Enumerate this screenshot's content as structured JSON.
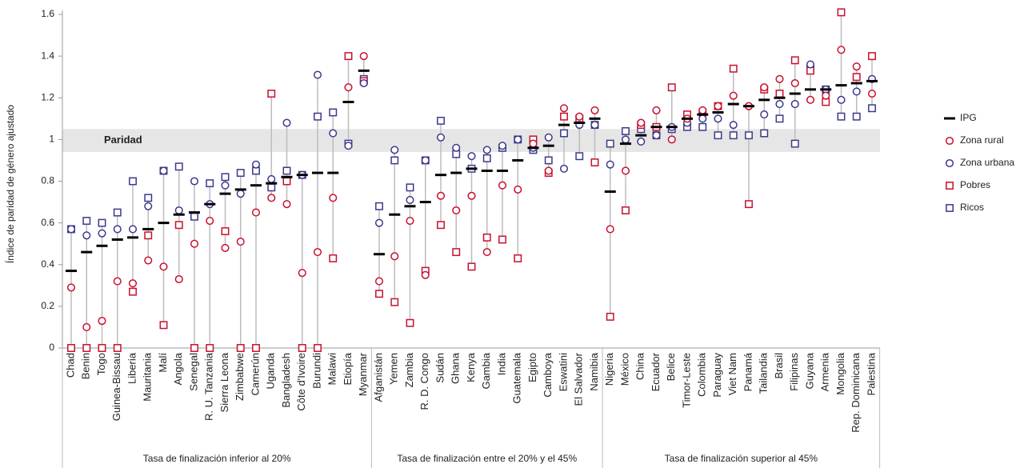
{
  "chart_data": {
    "type": "dot",
    "y_label": "Índice de paridad de género ajustado",
    "parity_label": "Paridad",
    "parity_band": [
      0.94,
      1.05
    ],
    "ylim": [
      0,
      1.6
    ],
    "yticks": [
      0,
      0.2,
      0.4,
      0.6,
      0.8,
      1,
      1.2,
      1.4,
      1.6
    ],
    "groups": [
      {
        "label": "Tasa de finalización inferior al 20%",
        "categories": [
          "Chad",
          "Benin",
          "Togo",
          "Guinea-Bissau",
          "Liberia",
          "Mauritania",
          "Malí",
          "Angola",
          "Senegal",
          "R. U. Tanzania",
          "Sierra Leona",
          "Zimbabwe",
          "Camerún",
          "Uganda",
          "Bangladesh",
          "Côte d'Ivoire",
          "Burundi",
          "Malawi",
          "Etiopía",
          "Myanmar"
        ]
      },
      {
        "label": "Tasa de finalización entre el 20% y el 45%",
        "categories": [
          "Afganistán",
          "Yemen",
          "Zambia",
          "R. D. Congo",
          "Sudán",
          "Ghana",
          "Kenya",
          "Gambia",
          "India",
          "Guatemala",
          "Egipto",
          "Camboya",
          "Eswatini",
          "El Salvador",
          "Namibia"
        ]
      },
      {
        "label": "Tasa de finalización superior al 45%",
        "categories": [
          "Nigeria",
          "México",
          "China",
          "Ecuador",
          "Belice",
          "Timor-Leste",
          "Colombia",
          "Paraguay",
          "Viet Nam",
          "Panamá",
          "Tailandia",
          "Brasil",
          "Filipinas",
          "Guyana",
          "Armenia",
          "Mongolia",
          "Rep. Dominicana",
          "Palestina"
        ]
      }
    ],
    "series": [
      {
        "name": "IPG",
        "marker": "dash",
        "color": "#000000",
        "values": [
          0.37,
          0.46,
          0.49,
          0.52,
          0.53,
          0.57,
          0.6,
          0.64,
          0.65,
          0.69,
          0.74,
          0.76,
          0.78,
          0.79,
          0.82,
          0.83,
          0.84,
          0.84,
          1.18,
          1.33,
          0.45,
          0.64,
          0.68,
          0.7,
          0.83,
          0.84,
          0.86,
          0.85,
          0.85,
          0.9,
          0.96,
          0.97,
          1.07,
          1.08,
          1.1,
          0.75,
          0.98,
          1.02,
          1.06,
          1.06,
          1.1,
          1.12,
          1.13,
          1.17,
          1.16,
          1.19,
          1.2,
          1.22,
          1.24,
          1.24,
          1.26,
          1.27,
          1.28
        ]
      },
      {
        "name": "Zona rural",
        "marker": "circle",
        "color": "#c8102e",
        "values": [
          0.29,
          0.1,
          0.13,
          0.32,
          0.31,
          0.42,
          0.39,
          0.33,
          0.5,
          0.61,
          0.48,
          0.51,
          0.65,
          0.72,
          0.69,
          0.36,
          0.46,
          0.72,
          1.25,
          1.4,
          0.32,
          0.44,
          0.61,
          0.35,
          0.73,
          0.66,
          0.73,
          0.46,
          0.78,
          0.76,
          0.98,
          0.85,
          1.15,
          1.11,
          1.14,
          0.57,
          0.85,
          1.08,
          1.14,
          1.0,
          1.1,
          1.14,
          1.16,
          1.21,
          1.16,
          1.25,
          1.29,
          1.27,
          1.19,
          1.21,
          1.43,
          1.35,
          1.22
        ]
      },
      {
        "name": "Zona urbana",
        "marker": "circle",
        "color": "#3a3a8c",
        "values": [
          0.57,
          0.54,
          0.55,
          0.57,
          0.57,
          0.68,
          0.85,
          0.66,
          0.8,
          0.69,
          0.78,
          0.74,
          0.88,
          0.81,
          1.08,
          0.83,
          1.31,
          1.03,
          0.97,
          1.27,
          0.6,
          0.95,
          0.71,
          0.9,
          1.01,
          0.96,
          0.92,
          0.95,
          0.97,
          1.0,
          0.96,
          1.01,
          0.86,
          1.07,
          1.07,
          0.88,
          1.0,
          0.99,
          1.02,
          1.06,
          1.08,
          1.1,
          1.1,
          1.07,
          1.16,
          1.12,
          1.17,
          1.17,
          1.36,
          1.24,
          1.19,
          1.23,
          1.29
        ]
      },
      {
        "name": "Pobres",
        "marker": "square",
        "color": "#c8102e",
        "values": [
          0,
          0,
          0,
          0,
          0.27,
          0.54,
          0.11,
          0.59,
          0,
          0,
          0.56,
          0,
          0,
          1.22,
          0.8,
          0,
          0,
          0.43,
          1.4,
          1.28,
          0.26,
          0.22,
          0.12,
          0.37,
          0.59,
          0.46,
          0.39,
          0.53,
          0.52,
          0.43,
          1.0,
          0.84,
          1.11,
          1.1,
          0.89,
          0.15,
          0.66,
          1.07,
          1.06,
          1.25,
          1.12,
          1.13,
          1.16,
          1.34,
          0.69,
          1.24,
          1.22,
          1.38,
          1.33,
          1.18,
          1.61,
          1.3,
          1.4
        ]
      },
      {
        "name": "Ricos",
        "marker": "square",
        "color": "#3a3a8c",
        "values": [
          0.57,
          0.61,
          0.6,
          0.65,
          0.8,
          0.72,
          0.85,
          0.87,
          0.63,
          0.79,
          0.82,
          0.84,
          0.85,
          0.77,
          0.85,
          0.83,
          1.11,
          1.13,
          0.98,
          1.29,
          0.68,
          0.9,
          0.77,
          0.9,
          1.09,
          0.93,
          0.86,
          0.91,
          0.96,
          1.0,
          0.95,
          0.9,
          1.03,
          0.92,
          1.07,
          0.98,
          1.04,
          1.05,
          1.02,
          1.05,
          1.06,
          1.06,
          1.02,
          1.02,
          1.02,
          1.03,
          1.1,
          0.98,
          1.34,
          1.24,
          1.11,
          1.11,
          1.15
        ]
      }
    ]
  }
}
